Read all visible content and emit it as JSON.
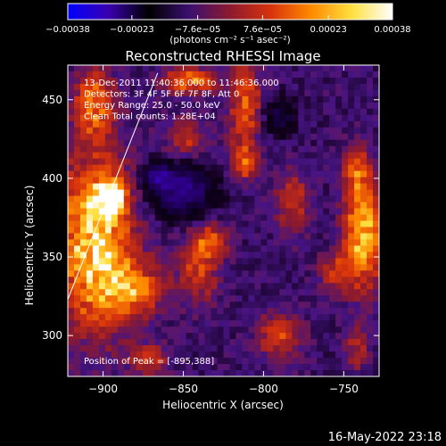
{
  "chart_data": {
    "type": "heatmap",
    "title": "Reconstructed RHESSI Image",
    "xlabel": "Heliocentric X (arcsec)",
    "ylabel": "Heliocentric Y (arcsec)",
    "xlim": [
      -922,
      -728
    ],
    "ylim": [
      274,
      472
    ],
    "x_ticks": [
      -900,
      -850,
      -800,
      -750
    ],
    "y_ticks": [
      300,
      350,
      400,
      450
    ],
    "x_tick_labels": [
      "−900",
      "−850",
      "−800",
      "−750"
    ],
    "y_tick_labels": [
      "300",
      "350",
      "400",
      "450"
    ],
    "colorbar": {
      "range": [
        -0.00038,
        0.00038
      ],
      "ticks": [
        -0.00038,
        -0.00023,
        -7.6e-05,
        7.6e-05,
        0.00023,
        0.00038
      ],
      "tick_labels": [
        "−0.00038",
        "−0.00023",
        "−7.6e−05",
        "7.6e−05",
        "0.00023",
        "0.00038"
      ],
      "unit_label": "(photons cm⁻² s⁻¹ asec⁻²)",
      "colors": [
        "#0000ff",
        "#3a00b0",
        "#000000",
        "#3b0f70",
        "#8c1a2e",
        "#d8330c",
        "#ff8a00",
        "#ffe040",
        "#ffffff"
      ]
    },
    "annotations": [
      "13-Dec-2011 11:40:36.000 to 11:46:36.000",
      "Detectors: 3F 4F 5F 6F 7F 8F, Att 0",
      "Energy Range: 25.0 - 50.0 keV",
      "Clean     Total counts: 1.28E+04"
    ],
    "peak_label": "Position of Peak = [-895,388]",
    "peak": {
      "x": -895,
      "y": 388
    },
    "limb": [
      [
        -922,
        323
      ],
      [
        -866,
        467
      ]
    ],
    "bright_regions": [
      {
        "x": -905,
        "y": 360,
        "amp": 0.95,
        "sx": 16,
        "sy": 38
      },
      {
        "x": -895,
        "y": 388,
        "amp": 1.0,
        "sx": 6,
        "sy": 6
      },
      {
        "x": -880,
        "y": 330,
        "amp": 0.55,
        "sx": 14,
        "sy": 12
      },
      {
        "x": -905,
        "y": 448,
        "amp": 0.6,
        "sx": 9,
        "sy": 14
      },
      {
        "x": -846,
        "y": 462,
        "amp": 0.65,
        "sx": 11,
        "sy": 6
      },
      {
        "x": -848,
        "y": 425,
        "amp": 0.35,
        "sx": 9,
        "sy": 9
      },
      {
        "x": -812,
        "y": 447,
        "amp": 0.55,
        "sx": 7,
        "sy": 22
      },
      {
        "x": -812,
        "y": 410,
        "amp": 0.45,
        "sx": 6,
        "sy": 8
      },
      {
        "x": -840,
        "y": 345,
        "amp": 0.45,
        "sx": 9,
        "sy": 17
      },
      {
        "x": -832,
        "y": 360,
        "amp": 0.4,
        "sx": 7,
        "sy": 7
      },
      {
        "x": -782,
        "y": 385,
        "amp": 0.45,
        "sx": 7,
        "sy": 14
      },
      {
        "x": -790,
        "y": 300,
        "amp": 0.5,
        "sx": 9,
        "sy": 10
      },
      {
        "x": -738,
        "y": 365,
        "amp": 0.85,
        "sx": 8,
        "sy": 24
      },
      {
        "x": -742,
        "y": 405,
        "amp": 0.45,
        "sx": 6,
        "sy": 10
      },
      {
        "x": -755,
        "y": 340,
        "amp": 0.4,
        "sx": 7,
        "sy": 8
      },
      {
        "x": -872,
        "y": 285,
        "amp": 0.4,
        "sx": 8,
        "sy": 7
      },
      {
        "x": -742,
        "y": 292,
        "amp": 0.35,
        "sx": 5,
        "sy": 10
      }
    ],
    "negative_regions": [
      {
        "x": -850,
        "y": 392,
        "amp": 0.55,
        "sx": 14,
        "sy": 12
      },
      {
        "x": -867,
        "y": 402,
        "amp": 0.45,
        "sx": 6,
        "sy": 6
      },
      {
        "x": -790,
        "y": 438,
        "amp": 0.35,
        "sx": 7,
        "sy": 8
      }
    ]
  },
  "footer": {
    "timestamp": "16-May-2022 23:18"
  }
}
